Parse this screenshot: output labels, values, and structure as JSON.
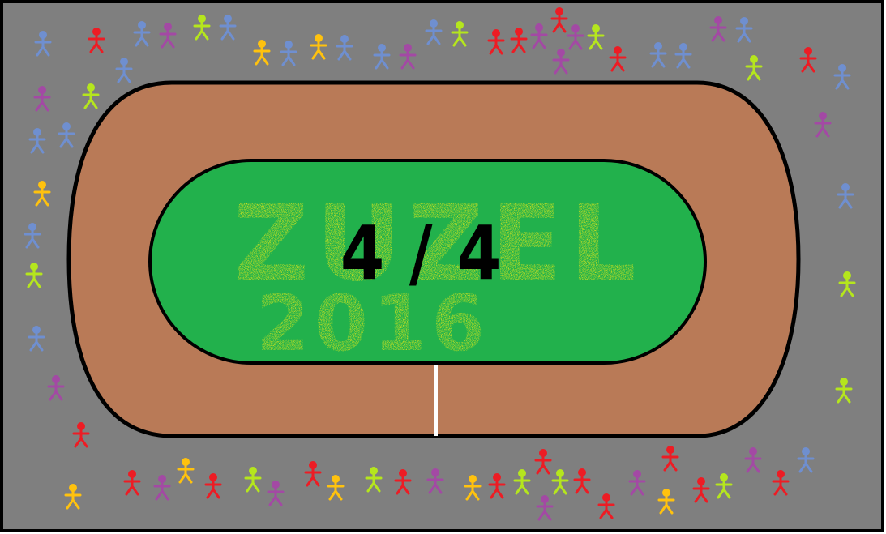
{
  "game": {
    "title_line1": "ZUZEL",
    "title_line2": "2016",
    "lap": {
      "current": 4,
      "total": 4,
      "display": "4 / 4"
    }
  },
  "colors": {
    "border": "#000000",
    "stands": "#7f7f7f",
    "track": "#b97a57",
    "infield": "#22b14c",
    "grass_text": "#c8e020",
    "finish_line": "#ffffff",
    "spectators": [
      "#ed1c24",
      "#6f8fd0",
      "#a349a4",
      "#b5e61d",
      "#ffc20e"
    ]
  }
}
